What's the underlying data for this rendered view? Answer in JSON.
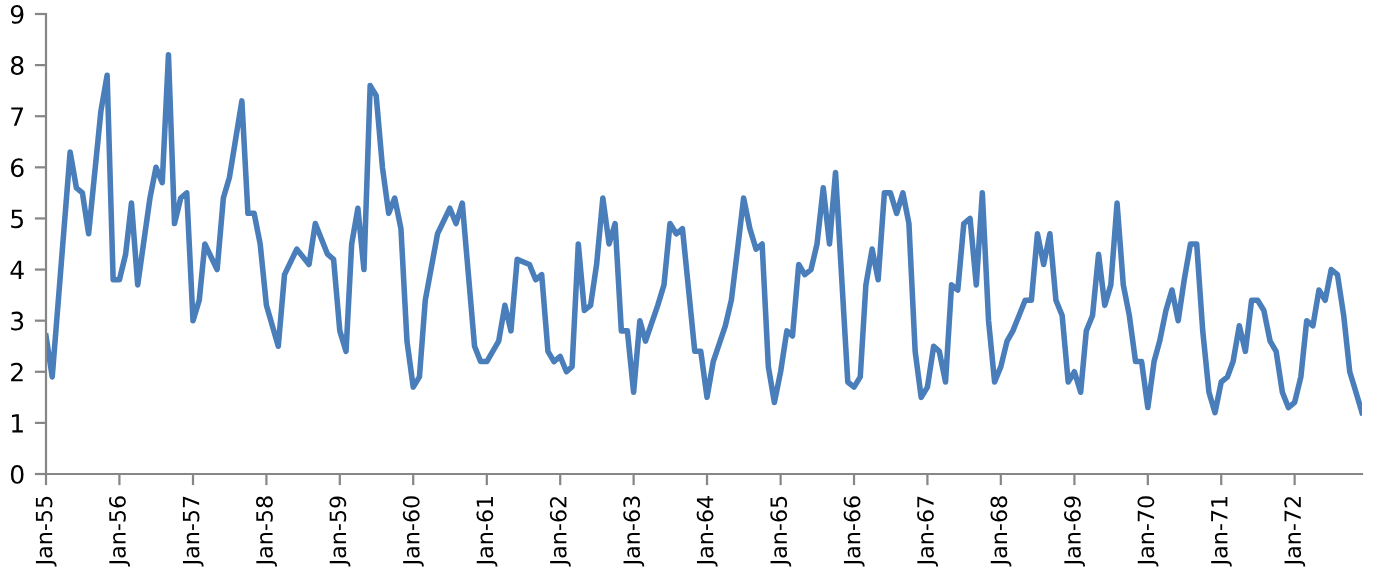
{
  "chart_data": {
    "type": "line",
    "x": [
      "1955-01",
      "1955-02",
      "1955-05",
      "1955-06",
      "1955-07",
      "1955-08",
      "1955-10",
      "1955-11",
      "1955-12",
      "1956-01",
      "1956-02",
      "1956-03",
      "1956-04",
      "1956-06",
      "1956-07",
      "1956-08",
      "1956-09",
      "1956-10",
      "1956-11",
      "1956-12",
      "1957-01",
      "1957-02",
      "1957-03",
      "1957-05",
      "1957-06",
      "1957-07",
      "1957-09",
      "1957-10",
      "1957-11",
      "1957-12",
      "1958-01",
      "1958-03",
      "1958-04",
      "1958-06",
      "1958-08",
      "1958-09",
      "1958-11",
      "1958-12",
      "1959-01",
      "1959-02",
      "1959-03",
      "1959-04",
      "1959-05",
      "1959-06",
      "1959-07",
      "1959-08",
      "1959-09",
      "1959-10",
      "1959-11",
      "1959-12",
      "1960-01",
      "1960-02",
      "1960-03",
      "1960-05",
      "1960-07",
      "1960-08",
      "1960-09",
      "1960-11",
      "1960-12",
      "1961-01",
      "1961-03",
      "1961-04",
      "1961-05",
      "1961-06",
      "1961-08",
      "1961-09",
      "1961-10",
      "1961-11",
      "1961-12",
      "1962-01",
      "1962-02",
      "1962-03",
      "1962-04",
      "1962-05",
      "1962-06",
      "1962-07",
      "1962-08",
      "1962-09",
      "1962-10",
      "1962-11",
      "1962-12",
      "1963-01",
      "1963-02",
      "1963-03",
      "1963-05",
      "1963-06",
      "1963-07",
      "1963-08",
      "1963-09",
      "1963-11",
      "1963-12",
      "1964-01",
      "1964-02",
      "1964-04",
      "1964-05",
      "1964-06",
      "1964-07",
      "1964-08",
      "1964-09",
      "1964-10",
      "1964-11",
      "1964-12",
      "1965-01",
      "1965-02",
      "1965-03",
      "1965-04",
      "1965-05",
      "1965-06",
      "1965-07",
      "1965-08",
      "1965-09",
      "1965-10",
      "1965-12",
      "1966-01",
      "1966-02",
      "1966-03",
      "1966-04",
      "1966-05",
      "1966-06",
      "1966-07",
      "1966-08",
      "1966-09",
      "1966-10",
      "1966-11",
      "1966-12",
      "1967-01",
      "1967-02",
      "1967-03",
      "1967-04",
      "1967-05",
      "1967-06",
      "1967-07",
      "1967-08",
      "1967-09",
      "1967-10",
      "1967-11",
      "1967-12",
      "1968-01",
      "1968-02",
      "1968-03",
      "1968-05",
      "1968-06",
      "1968-07",
      "1968-08",
      "1968-09",
      "1968-10",
      "1968-11",
      "1968-12",
      "1969-01",
      "1969-02",
      "1969-03",
      "1969-04",
      "1969-05",
      "1969-06",
      "1969-07",
      "1969-08",
      "1969-09",
      "1969-10",
      "1969-11",
      "1969-12",
      "1970-01",
      "1970-02",
      "1970-03",
      "1970-04",
      "1970-05",
      "1970-06",
      "1970-07",
      "1970-08",
      "1970-09",
      "1970-10",
      "1970-11",
      "1970-12",
      "1971-01",
      "1971-02",
      "1971-03",
      "1971-04",
      "1971-05",
      "1971-06",
      "1971-07",
      "1971-08",
      "1971-09",
      "1971-10",
      "1971-11",
      "1971-12",
      "1972-01",
      "1972-02",
      "1972-03",
      "1972-04",
      "1972-05",
      "1972-06",
      "1972-07",
      "1972-08",
      "1972-09",
      "1972-10",
      "1972-11",
      "1972-12"
    ],
    "series": [
      {
        "color": "#4a7ebb",
        "values": [
          2.7,
          1.9,
          6.3,
          5.6,
          5.5,
          4.7,
          7.1,
          7.8,
          3.8,
          3.8,
          4.3,
          5.3,
          3.7,
          5.4,
          6.0,
          5.7,
          8.2,
          4.9,
          5.4,
          5.5,
          3.0,
          3.4,
          4.5,
          4.0,
          5.4,
          5.8,
          7.3,
          5.1,
          5.1,
          4.5,
          3.3,
          2.5,
          3.9,
          4.4,
          4.1,
          4.9,
          4.3,
          4.2,
          2.8,
          2.4,
          4.5,
          5.2,
          4.0,
          7.6,
          7.4,
          6.0,
          5.1,
          5.4,
          4.8,
          2.6,
          1.7,
          1.9,
          3.4,
          4.7,
          5.2,
          4.9,
          5.3,
          2.5,
          2.2,
          2.2,
          2.6,
          3.3,
          2.8,
          4.2,
          4.1,
          3.8,
          3.9,
          2.4,
          2.2,
          2.3,
          2.0,
          2.1,
          4.5,
          3.2,
          3.3,
          4.1,
          5.4,
          4.5,
          4.9,
          2.8,
          2.8,
          1.6,
          3.0,
          2.6,
          3.3,
          3.7,
          4.9,
          4.7,
          4.8,
          2.4,
          2.4,
          1.5,
          2.2,
          2.9,
          3.4,
          4.4,
          5.4,
          4.8,
          4.4,
          4.5,
          2.1,
          1.4,
          2.0,
          2.8,
          2.7,
          4.1,
          3.9,
          4.0,
          4.5,
          5.6,
          4.5,
          5.9,
          1.8,
          1.7,
          1.9,
          3.7,
          4.4,
          3.8,
          5.5,
          5.5,
          5.1,
          5.5,
          4.9,
          2.4,
          1.5,
          1.7,
          2.5,
          2.4,
          1.8,
          3.7,
          3.6,
          4.9,
          5.0,
          3.7,
          5.5,
          3.0,
          1.8,
          2.1,
          2.6,
          2.8,
          3.4,
          3.4,
          4.7,
          4.1,
          4.7,
          3.4,
          3.1,
          1.8,
          2.0,
          1.6,
          2.8,
          3.1,
          4.3,
          3.3,
          3.7,
          5.3,
          3.7,
          3.1,
          2.2,
          2.2,
          1.3,
          2.2,
          2.6,
          3.2,
          3.6,
          3.0,
          3.8,
          4.5,
          4.5,
          2.8,
          1.6,
          1.2,
          1.8,
          1.9,
          2.2,
          2.9,
          2.4,
          3.4,
          3.4,
          3.2,
          2.6,
          2.4,
          1.6,
          1.3,
          1.4,
          1.9,
          3.0,
          2.9,
          3.6,
          3.4,
          4.0,
          3.9,
          3.1,
          2.0,
          1.6,
          1.2
        ]
      }
    ],
    "xlim": [
      "1955-01",
      "1972-12"
    ],
    "xticks": [
      {
        "value": "1955-01",
        "label": "Jan-55"
      },
      {
        "value": "1956-01",
        "label": "Jan-56"
      },
      {
        "value": "1957-01",
        "label": "Jan-57"
      },
      {
        "value": "1958-01",
        "label": "Jan-58"
      },
      {
        "value": "1959-01",
        "label": "Jan-59"
      },
      {
        "value": "1960-01",
        "label": "Jan-60"
      },
      {
        "value": "1961-01",
        "label": "Jan-61"
      },
      {
        "value": "1962-01",
        "label": "Jan-62"
      },
      {
        "value": "1963-01",
        "label": "Jan-63"
      },
      {
        "value": "1964-01",
        "label": "Jan-64"
      },
      {
        "value": "1965-01",
        "label": "Jan-65"
      },
      {
        "value": "1966-01",
        "label": "Jan-66"
      },
      {
        "value": "1967-01",
        "label": "Jan-67"
      },
      {
        "value": "1968-01",
        "label": "Jan-68"
      },
      {
        "value": "1969-01",
        "label": "Jan-69"
      },
      {
        "value": "1970-01",
        "label": "Jan-70"
      },
      {
        "value": "1971-01",
        "label": "Jan-71"
      },
      {
        "value": "1972-01",
        "label": "Jan-72"
      }
    ],
    "ylim": [
      0,
      9
    ],
    "yticks": [
      0,
      1,
      2,
      3,
      4,
      5,
      6,
      7,
      8,
      9
    ],
    "grid": false,
    "legend": false,
    "marker": "none",
    "line_style": "solid"
  }
}
